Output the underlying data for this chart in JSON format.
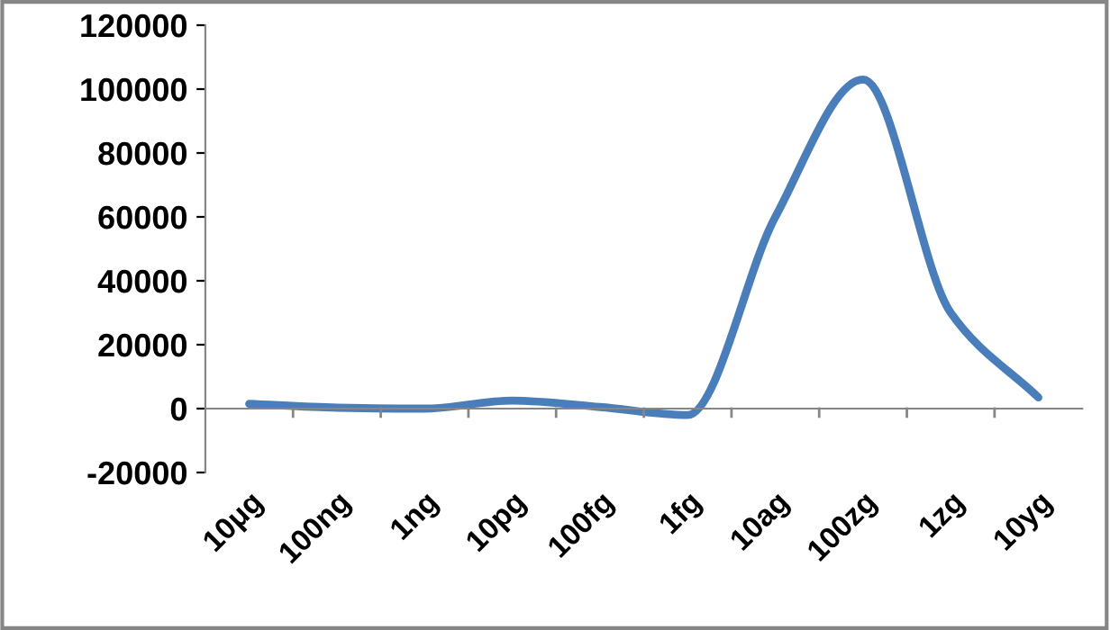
{
  "chart_data": {
    "type": "line",
    "categories": [
      "10μg",
      "100ng",
      "1ng",
      "10pg",
      "100fg",
      "1fg",
      "10ag",
      "100zg",
      "1zg",
      "10yg"
    ],
    "series": [
      {
        "color": "#4a7ebb",
        "values": [
          1500,
          300,
          0,
          2500,
          500,
          -2000,
          60000,
          103000,
          30000,
          3500
        ]
      }
    ],
    "ylim": [
      -20000,
      120000
    ],
    "yticks": [
      -20000,
      0,
      20000,
      40000,
      60000,
      80000,
      100000,
      120000
    ],
    "marker": "none",
    "line_style": "solid"
  }
}
